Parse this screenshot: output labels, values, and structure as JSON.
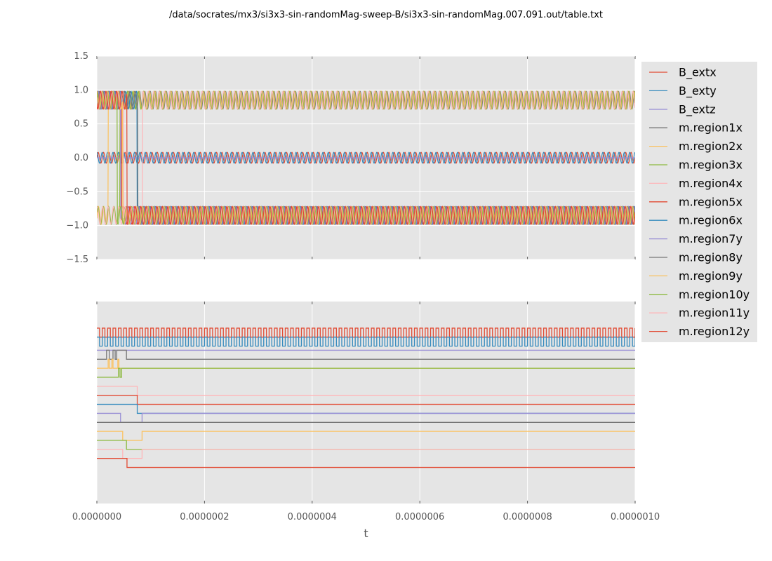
{
  "title": "/data/socrates/mx3/si3x3-sin-randomMag-sweep-B/si3x3-sin-randomMag.007.091.out/table.txt",
  "chart_data": [
    {
      "type": "line",
      "panel": "top",
      "xlim": [
        0,
        1e-06
      ],
      "ylim": [
        -1.5,
        1.5
      ],
      "yticks": [
        -1.5,
        -1.0,
        -0.5,
        0.0,
        0.5,
        1.0,
        1.5
      ],
      "ytick_labels": [
        "−1.5",
        "−1.0",
        "−0.5",
        "0.0",
        "0.5",
        "1.0",
        "1.5"
      ],
      "grid": true,
      "oscillation_periods": 100,
      "series": [
        {
          "name": "B_extx",
          "color": "#E24A33",
          "kind": "sin",
          "amp": 0.08,
          "offset": 0,
          "phase": 0
        },
        {
          "name": "B_exty",
          "color": "#348ABD",
          "kind": "sin",
          "amp": 0.08,
          "offset": 0,
          "phase": 1.57
        },
        {
          "name": "B_extz",
          "color": "#988ED5",
          "kind": "flat",
          "value": 0
        },
        {
          "name": "m.region1x",
          "color": "#777777",
          "kind": "switch",
          "v0": 0.85,
          "v1": 0.85,
          "switch_t": 8.5e-08
        },
        {
          "name": "m.region2x",
          "color": "#FBC15E",
          "kind": "switch",
          "v0": -0.85,
          "v1": 0.85,
          "switch_t": 2.1e-08
        },
        {
          "name": "m.region3x",
          "color": "#8EBA42",
          "kind": "switch",
          "v0": -0.85,
          "v1": 0.85,
          "switch_t": 4.3e-08
        },
        {
          "name": "m.region4x",
          "color": "#FFB5B8",
          "kind": "switch",
          "v0": -0.85,
          "v1": 0.85,
          "switch_t": 8.5e-08
        },
        {
          "name": "m.region5x",
          "color": "#E24A33",
          "kind": "switch",
          "v0": 0.85,
          "v1": -0.85,
          "switch_t": 4.6e-08
        },
        {
          "name": "m.region6x",
          "color": "#348ABD",
          "kind": "switch",
          "v0": 0.85,
          "v1": -0.85,
          "switch_t": 7.5e-08
        },
        {
          "name": "m.region7y",
          "color": "#988ED5",
          "kind": "switch",
          "v0": 0.85,
          "v1": -0.85,
          "switch_t": 4.4e-08
        },
        {
          "name": "m.region8y",
          "color": "#777777",
          "kind": "switch",
          "v0": 0.85,
          "v1": -0.85,
          "switch_t": 7.6e-08
        },
        {
          "name": "m.region9y",
          "color": "#FBC15E",
          "kind": "switch",
          "v0": 0.85,
          "v1": -0.85,
          "switch_t": 4.8e-08
        },
        {
          "name": "m.region10y",
          "color": "#8EBA42",
          "kind": "switch",
          "v0": 0.85,
          "v1": -0.85,
          "switch_t": 3.8e-08
        },
        {
          "name": "m.region11y",
          "color": "#FFB5B8",
          "kind": "switch",
          "v0": 0.85,
          "v1": -0.85,
          "switch_t": 5e-08
        },
        {
          "name": "m.region12y",
          "color": "#E24A33",
          "kind": "switch",
          "v0": 0.85,
          "v1": -0.85,
          "switch_t": 5.6e-08
        }
      ]
    },
    {
      "type": "line",
      "panel": "bottom",
      "xlim": [
        0,
        1e-06
      ],
      "xlabel": "t",
      "xticks": [
        0,
        2e-07,
        4e-07,
        6e-07,
        8e-07,
        1e-06
      ],
      "xtick_labels": [
        "0.0000000",
        "0.0000002",
        "0.0000004",
        "0.0000006",
        "0.0000008",
        "0.0000010"
      ],
      "y_tick_labels_shown": false,
      "grid": true,
      "digital_traces": [
        {
          "name": "B_extx",
          "color": "#E24A33",
          "kind": "square",
          "low": 14.25,
          "high": 15.25
        },
        {
          "name": "B_exty",
          "color": "#348ABD",
          "kind": "square",
          "low": 13.25,
          "high": 14.25
        },
        {
          "name": "B_extz",
          "color": "#988ED5",
          "kind": "levels",
          "levels": [
            [
              0,
              12.8
            ]
          ]
        },
        {
          "name": "m.region1x",
          "color": "#777777",
          "kind": "pulses",
          "base": 11.8,
          "high": 12.8,
          "pulses": [
            [
              1.8e-08,
              2.3e-08
            ],
            [
              3e-08,
              3.4e-08
            ],
            [
              3.7e-08,
              5.5e-08
            ]
          ]
        },
        {
          "name": "m.region2x",
          "color": "#FBC15E",
          "kind": "levels",
          "levels": [
            [
              0,
              10.8
            ],
            [
              2.1e-08,
              11.8
            ],
            [
              2.3e-08,
              10.8
            ],
            [
              2.8e-08,
              11.8
            ],
            [
              3e-08,
              10.8
            ],
            [
              3.9e-08,
              11.8
            ],
            [
              4.1e-08,
              10.8
            ],
            [
              5.2e-08,
              10.8
            ]
          ]
        },
        {
          "name": "m.region3x",
          "color": "#8EBA42",
          "kind": "levels",
          "levels": [
            [
              0,
              9.8
            ],
            [
              4e-08,
              10.8
            ],
            [
              4.3e-08,
              9.8
            ],
            [
              4.6e-08,
              10.8
            ]
          ]
        },
        {
          "name": "m.region4x",
          "color": "#FFB5B8",
          "kind": "levels",
          "levels": [
            [
              0,
              8.8
            ],
            [
              7.5e-08,
              7.8
            ]
          ]
        },
        {
          "name": "m.region5x",
          "color": "#E24A33",
          "kind": "levels",
          "levels": [
            [
              0,
              7.8
            ],
            [
              7.5e-08,
              6.8
            ]
          ]
        },
        {
          "name": "m.region6x",
          "color": "#348ABD",
          "kind": "levels",
          "levels": [
            [
              0,
              6.8
            ],
            [
              7.5e-08,
              5.8
            ]
          ]
        },
        {
          "name": "m.region7y",
          "color": "#988ED5",
          "kind": "levels",
          "levels": [
            [
              0,
              5.8
            ],
            [
              4.4e-08,
              4.8
            ],
            [
              8.4e-08,
              5.8
            ]
          ]
        },
        {
          "name": "m.region8y",
          "color": "#777777",
          "kind": "levels",
          "levels": [
            [
              0,
              4.8
            ]
          ]
        },
        {
          "name": "m.region9y",
          "color": "#FBC15E",
          "kind": "levels",
          "levels": [
            [
              0,
              3.8
            ],
            [
              4.8e-08,
              2.8
            ],
            [
              8.4e-08,
              3.8
            ]
          ]
        },
        {
          "name": "m.region10y",
          "color": "#8EBA42",
          "kind": "levels",
          "levels": [
            [
              0,
              2.8
            ],
            [
              5.5e-08,
              1.8
            ]
          ]
        },
        {
          "name": "m.region11y",
          "color": "#FFB5B8",
          "kind": "levels",
          "levels": [
            [
              0,
              1.8
            ],
            [
              4.8e-08,
              0.8
            ],
            [
              8.4e-08,
              1.8
            ]
          ]
        },
        {
          "name": "m.region12y",
          "color": "#E24A33",
          "kind": "levels",
          "levels": [
            [
              0,
              0.8
            ],
            [
              5.6e-08,
              -0.2
            ]
          ]
        }
      ],
      "ylim": [
        -4.2,
        18.2
      ]
    }
  ],
  "legend": {
    "placement": "right of plots",
    "entries": [
      "B_extx",
      "B_exty",
      "B_extz",
      "m.region1x",
      "m.region2x",
      "m.region3x",
      "m.region4x",
      "m.region5x",
      "m.region6x",
      "m.region7y",
      "m.region8y",
      "m.region9y",
      "m.region10y",
      "m.region11y",
      "m.region12y"
    ]
  }
}
